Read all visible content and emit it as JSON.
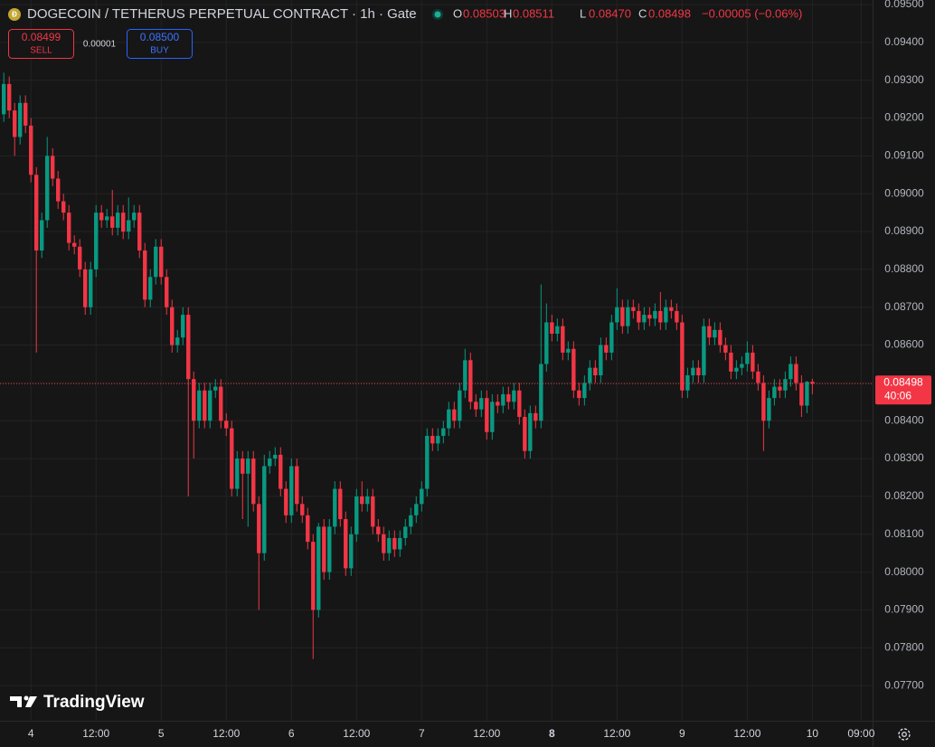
{
  "header": {
    "title": "DOGECOIN / TETHERUS PERPETUAL CONTRACT · 1h · Gate",
    "ohlc": [
      {
        "label": "O",
        "value": "0.08503"
      },
      {
        "label": "H",
        "value": "0.08511"
      },
      {
        "label": "L",
        "value": "0.08470"
      },
      {
        "label": "C",
        "value": "0.08498"
      }
    ],
    "change": "−0.00005 (−0.06%)"
  },
  "trade": {
    "sell_price": "0.08499",
    "sell_label": "SELL",
    "spread": "0.00001",
    "buy_price": "0.08500",
    "buy_label": "BUY"
  },
  "price_tag": {
    "countdown": "40:06"
  },
  "brand": "TradingView",
  "chart_data": {
    "type": "candlestick",
    "up_color": "#089981",
    "down_color": "#f23645",
    "grid": true,
    "last_price": 0.08498,
    "xlim": [
      -0.7,
      160.1
    ],
    "xticks": [
      {
        "value": 5,
        "label": "4"
      },
      {
        "value": 17,
        "label": "12:00"
      },
      {
        "value": 29,
        "label": "5"
      },
      {
        "value": 41,
        "label": "12:00"
      },
      {
        "value": 53,
        "label": "6"
      },
      {
        "value": 65,
        "label": "12:00"
      },
      {
        "value": 77,
        "label": "7"
      },
      {
        "value": 89,
        "label": "12:00"
      },
      {
        "value": 101,
        "label": "8"
      },
      {
        "value": 113,
        "label": "12:00"
      },
      {
        "value": 125,
        "label": "9"
      },
      {
        "value": 137,
        "label": "12:00"
      },
      {
        "value": 149,
        "label": "10"
      },
      {
        "value": 158,
        "label": "09:00"
      }
    ],
    "ylim": [
      0.07607,
      0.09512
    ],
    "yticks": [
      {
        "value": 0.095,
        "label": "0.09500"
      },
      {
        "value": 0.094,
        "label": "0.09400"
      },
      {
        "value": 0.093,
        "label": "0.09300"
      },
      {
        "value": 0.092,
        "label": "0.09200"
      },
      {
        "value": 0.091,
        "label": "0.09100"
      },
      {
        "value": 0.09,
        "label": "0.09000"
      },
      {
        "value": 0.089,
        "label": "0.08900"
      },
      {
        "value": 0.088,
        "label": "0.08800"
      },
      {
        "value": 0.087,
        "label": "0.08700"
      },
      {
        "value": 0.086,
        "label": "0.08600"
      },
      {
        "value": 0.085,
        "label": "0.08500"
      },
      {
        "value": 0.084,
        "label": "0.08400"
      },
      {
        "value": 0.083,
        "label": "0.08300"
      },
      {
        "value": 0.082,
        "label": "0.08200"
      },
      {
        "value": 0.081,
        "label": "0.08100"
      },
      {
        "value": 0.08,
        "label": "0.08000"
      },
      {
        "value": 0.079,
        "label": "0.07900"
      },
      {
        "value": 0.078,
        "label": "0.07800"
      },
      {
        "value": 0.077,
        "label": "0.07700"
      }
    ],
    "open": [
      0.0921,
      0.0929,
      0.0922,
      0.0915,
      0.0924,
      0.0918,
      0.0905,
      0.0885,
      0.0893,
      0.091,
      0.0904,
      0.0898,
      0.0895,
      0.0887,
      0.0886,
      0.088,
      0.087,
      0.088,
      0.0895,
      0.0893,
      0.0894,
      0.0891,
      0.0895,
      0.089,
      0.0893,
      0.0895,
      0.0885,
      0.0872,
      0.0878,
      0.0886,
      0.0878,
      0.087,
      0.086,
      0.0862,
      0.0868,
      0.0851,
      0.084,
      0.0848,
      0.084,
      0.0848,
      0.0849,
      0.084,
      0.0838,
      0.0822,
      0.083,
      0.0826,
      0.083,
      0.0818,
      0.0805,
      0.0828,
      0.083,
      0.0831,
      0.0822,
      0.0815,
      0.0828,
      0.0818,
      0.0815,
      0.0808,
      0.079,
      0.0812,
      0.08,
      0.0812,
      0.0822,
      0.0814,
      0.0801,
      0.081,
      0.082,
      0.0818,
      0.082,
      0.0812,
      0.081,
      0.0805,
      0.0809,
      0.0806,
      0.0809,
      0.0812,
      0.0815,
      0.0818,
      0.0822,
      0.0836,
      0.0834,
      0.0836,
      0.0838,
      0.0843,
      0.084,
      0.0848,
      0.0856,
      0.0845,
      0.0843,
      0.0846,
      0.0837,
      0.0845,
      0.0844,
      0.0847,
      0.0845,
      0.0848,
      0.0841,
      0.0832,
      0.0842,
      0.084,
      0.0855,
      0.0866,
      0.0863,
      0.0865,
      0.0858,
      0.0859,
      0.0848,
      0.0846,
      0.085,
      0.0854,
      0.0852,
      0.086,
      0.0858,
      0.0866,
      0.087,
      0.0865,
      0.087,
      0.0869,
      0.0866,
      0.0868,
      0.0867,
      0.0869,
      0.0866,
      0.087,
      0.0869,
      0.0866,
      0.0848,
      0.0852,
      0.0854,
      0.0852,
      0.0865,
      0.0862,
      0.0864,
      0.086,
      0.0858,
      0.0853,
      0.0854,
      0.0855,
      0.0858,
      0.0853,
      0.085,
      0.084,
      0.0846,
      0.0849,
      0.0848,
      0.0851,
      0.0855,
      0.085,
      0.0844,
      0.08503
    ],
    "high": [
      0.0932,
      0.0931,
      0.0924,
      0.0926,
      0.0926,
      0.092,
      0.0907,
      0.0895,
      0.0915,
      0.0912,
      0.0906,
      0.09,
      0.0897,
      0.0889,
      0.0888,
      0.0882,
      0.0882,
      0.0897,
      0.0897,
      0.0896,
      0.0901,
      0.0897,
      0.0897,
      0.0899,
      0.0897,
      0.0897,
      0.0887,
      0.088,
      0.0888,
      0.0888,
      0.088,
      0.0872,
      0.0864,
      0.087,
      0.087,
      0.0853,
      0.085,
      0.085,
      0.085,
      0.0851,
      0.0851,
      0.0842,
      0.084,
      0.0832,
      0.0832,
      0.0832,
      0.0832,
      0.082,
      0.0831,
      0.0832,
      0.0833,
      0.0833,
      0.0824,
      0.083,
      0.083,
      0.082,
      0.0817,
      0.081,
      0.0813,
      0.0814,
      0.0814,
      0.0824,
      0.0824,
      0.0816,
      0.0812,
      0.0822,
      0.0824,
      0.0822,
      0.0822,
      0.0814,
      0.0812,
      0.0811,
      0.0811,
      0.0811,
      0.0814,
      0.0817,
      0.082,
      0.0824,
      0.0838,
      0.0838,
      0.0838,
      0.084,
      0.0845,
      0.0845,
      0.085,
      0.0859,
      0.0858,
      0.0847,
      0.0848,
      0.0848,
      0.0847,
      0.0847,
      0.0849,
      0.0849,
      0.085,
      0.085,
      0.0843,
      0.0844,
      0.0844,
      0.0876,
      0.0871,
      0.0868,
      0.0867,
      0.0867,
      0.0861,
      0.0861,
      0.085,
      0.0852,
      0.0856,
      0.0856,
      0.0862,
      0.0862,
      0.0868,
      0.0875,
      0.0872,
      0.0872,
      0.0872,
      0.0871,
      0.087,
      0.087,
      0.0871,
      0.0874,
      0.0872,
      0.0872,
      0.0871,
      0.0868,
      0.0854,
      0.0856,
      0.0856,
      0.0867,
      0.0867,
      0.0866,
      0.0866,
      0.0862,
      0.086,
      0.0856,
      0.0857,
      0.0861,
      0.086,
      0.0855,
      0.0852,
      0.0848,
      0.0851,
      0.0851,
      0.0853,
      0.0857,
      0.0857,
      0.0852,
      0.08505,
      0.08511
    ],
    "low": [
      0.0919,
      0.092,
      0.091,
      0.0913,
      0.0916,
      0.0903,
      0.0858,
      0.0883,
      0.0891,
      0.0902,
      0.0896,
      0.0893,
      0.0885,
      0.0884,
      0.0878,
      0.0868,
      0.0868,
      0.0878,
      0.0891,
      0.0891,
      0.0889,
      0.0889,
      0.0888,
      0.0888,
      0.0891,
      0.0883,
      0.087,
      0.087,
      0.0876,
      0.0876,
      0.0868,
      0.0858,
      0.0858,
      0.086,
      0.082,
      0.083,
      0.0838,
      0.0838,
      0.0838,
      0.0846,
      0.0838,
      0.0836,
      0.082,
      0.082,
      0.0814,
      0.0812,
      0.0816,
      0.079,
      0.0803,
      0.0826,
      0.0828,
      0.082,
      0.0813,
      0.0813,
      0.0816,
      0.0813,
      0.0806,
      0.0777,
      0.0788,
      0.0798,
      0.0798,
      0.081,
      0.0812,
      0.0799,
      0.0799,
      0.0808,
      0.0816,
      0.0816,
      0.081,
      0.0808,
      0.0803,
      0.0803,
      0.0804,
      0.0804,
      0.0807,
      0.081,
      0.0813,
      0.0816,
      0.082,
      0.0832,
      0.0832,
      0.0834,
      0.0836,
      0.0838,
      0.0838,
      0.0846,
      0.0843,
      0.0841,
      0.0841,
      0.0835,
      0.0835,
      0.0842,
      0.0842,
      0.0843,
      0.0843,
      0.0839,
      0.083,
      0.083,
      0.0838,
      0.0838,
      0.0853,
      0.0861,
      0.0861,
      0.0856,
      0.0856,
      0.0846,
      0.0844,
      0.0844,
      0.0848,
      0.085,
      0.085,
      0.0856,
      0.0856,
      0.0864,
      0.0863,
      0.0863,
      0.0867,
      0.0864,
      0.0864,
      0.0865,
      0.0865,
      0.0864,
      0.0864,
      0.0867,
      0.0864,
      0.0846,
      0.0846,
      0.085,
      0.085,
      0.085,
      0.086,
      0.086,
      0.0858,
      0.0856,
      0.0851,
      0.0851,
      0.0852,
      0.0853,
      0.0851,
      0.0848,
      0.0832,
      0.0838,
      0.0844,
      0.0846,
      0.0846,
      0.0849,
      0.0848,
      0.0841,
      0.0842,
      0.0847
    ],
    "close": [
      0.0929,
      0.0922,
      0.0915,
      0.0924,
      0.0918,
      0.0905,
      0.0885,
      0.0893,
      0.091,
      0.0904,
      0.0898,
      0.0895,
      0.0887,
      0.0886,
      0.088,
      0.087,
      0.088,
      0.0895,
      0.0893,
      0.0894,
      0.0891,
      0.0895,
      0.089,
      0.0893,
      0.0895,
      0.0885,
      0.0872,
      0.0878,
      0.0886,
      0.0878,
      0.087,
      0.086,
      0.0862,
      0.0868,
      0.0851,
      0.084,
      0.0848,
      0.084,
      0.0848,
      0.0849,
      0.084,
      0.0838,
      0.0822,
      0.083,
      0.0826,
      0.083,
      0.0818,
      0.0805,
      0.0828,
      0.083,
      0.0831,
      0.0822,
      0.0815,
      0.0828,
      0.0818,
      0.0815,
      0.0808,
      0.079,
      0.0812,
      0.08,
      0.0812,
      0.0822,
      0.0814,
      0.0801,
      0.081,
      0.082,
      0.0818,
      0.082,
      0.0812,
      0.081,
      0.0805,
      0.0809,
      0.0806,
      0.0809,
      0.0812,
      0.0815,
      0.0818,
      0.0822,
      0.0836,
      0.0834,
      0.0836,
      0.0838,
      0.0843,
      0.084,
      0.0848,
      0.0856,
      0.0845,
      0.0843,
      0.0846,
      0.0837,
      0.0845,
      0.0844,
      0.0847,
      0.0845,
      0.0848,
      0.0841,
      0.0832,
      0.0842,
      0.084,
      0.0855,
      0.0866,
      0.0863,
      0.0865,
      0.0858,
      0.0859,
      0.0848,
      0.0846,
      0.085,
      0.0854,
      0.0852,
      0.086,
      0.0858,
      0.0866,
      0.087,
      0.0865,
      0.087,
      0.0869,
      0.0866,
      0.0868,
      0.0867,
      0.0869,
      0.0866,
      0.087,
      0.0869,
      0.0866,
      0.0848,
      0.0852,
      0.0854,
      0.0852,
      0.0865,
      0.0862,
      0.0864,
      0.086,
      0.0858,
      0.0853,
      0.0854,
      0.0855,
      0.0858,
      0.0853,
      0.085,
      0.084,
      0.0846,
      0.0849,
      0.0848,
      0.0851,
      0.0855,
      0.085,
      0.0844,
      0.08503,
      0.08498
    ]
  }
}
